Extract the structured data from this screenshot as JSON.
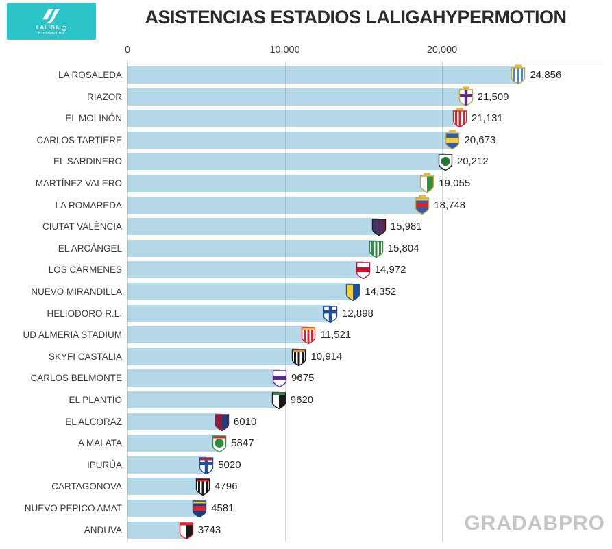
{
  "header": {
    "logo": {
      "brand": "LALIGA",
      "sub": "HYPERMOTION",
      "bg_color": "#2bc4c8"
    },
    "title": "ASISTENCIAS ESTADIOS LALIGAHYPERMOTION"
  },
  "watermark": "GRADABPRO",
  "chart_data": {
    "type": "bar",
    "orientation": "horizontal",
    "title": "ASISTENCIAS ESTADIOS LALIGAHYPERMOTION",
    "xlabel": "",
    "ylabel": "",
    "grid": "vertical-lines-at-ticks",
    "bar_color": "#b5d8e9",
    "x_axis": {
      "ticks": [
        0,
        10000,
        20000
      ],
      "tick_labels": [
        "0",
        "10,000",
        "20,000"
      ],
      "max": 30000
    },
    "categories": [
      "LA ROSALEDA",
      "RIAZOR",
      "EL MOLINÓN",
      "CARLOS TARTIERE",
      "EL SARDINERO",
      "MARTÍNEZ VALERO",
      "LA ROMAREDA",
      "CIUTAT VALÈNCIA",
      "EL ARCÁNGEL",
      "LOS CÁRMENES",
      "NUEVO MIRANDILLA",
      "HELIODORO R.L.",
      "UD ALMERIA STADIUM",
      "SKYFI CASTALIA",
      "CARLOS BELMONTE",
      "EL PLANTÍO",
      "EL ALCORAZ",
      "A MALATA",
      "IPURÚA",
      "CARTAGONOVA",
      "NUEVO PEPICO AMAT",
      "ANDUVA"
    ],
    "values": [
      24856,
      21509,
      21131,
      20673,
      20212,
      19055,
      18748,
      15981,
      15804,
      14972,
      14352,
      12898,
      11521,
      10914,
      9675,
      9620,
      6010,
      5847,
      5020,
      4796,
      4581,
      3743
    ],
    "value_labels": [
      "24,856",
      "21,509",
      "21,131",
      "20,673",
      "20,212",
      "19,055",
      "18,748",
      "15,981",
      "15,804",
      "14,972",
      "14,352",
      "12,898",
      "11,521",
      "10,914",
      "9675",
      "9620",
      "6010",
      "5847",
      "5020",
      "4796",
      "4581",
      "3743"
    ],
    "clubs": [
      {
        "name": "malaga-cf-crest",
        "style": "stripes",
        "c1": "#ffffff",
        "c2": "#4a86d2",
        "border": "#caa53d",
        "crown": true
      },
      {
        "name": "deportivo-coruna-crest",
        "style": "cross",
        "c1": "#ffffff",
        "c2": "#5b2a84",
        "border": "#caa53d",
        "crown": true
      },
      {
        "name": "sporting-gijon-crest",
        "style": "stripes",
        "c1": "#ffffff",
        "c2": "#d9242f",
        "border": "#d9242f",
        "crown": true
      },
      {
        "name": "real-oviedo-crest",
        "style": "band",
        "c1": "#2b5cad",
        "c2": "#f0c93c",
        "border": "#caa53d",
        "crown": true
      },
      {
        "name": "racing-santander-crest",
        "style": "circle",
        "c1": "#ffffff",
        "c2": "#1e7a34",
        "border": "#1a1a1a",
        "crown": false
      },
      {
        "name": "elche-cf-crest",
        "style": "halves",
        "c1": "#ffffff",
        "c2": "#2f8f3f",
        "border": "#caa53d",
        "crown": true
      },
      {
        "name": "real-zaragoza-crest",
        "style": "band",
        "c1": "#2b5cad",
        "c2": "#d9242f",
        "accent": "#f0c93c",
        "border": "#caa53d",
        "crown": true
      },
      {
        "name": "levante-ud-crest",
        "style": "stripes",
        "c1": "#8c1d3f",
        "c2": "#1f3d7a",
        "border": "#1a1a1a",
        "crown": false
      },
      {
        "name": "cordoba-cf-crest",
        "style": "stripes",
        "c1": "#ffffff",
        "c2": "#2f8f3f",
        "border": "#2f8f3f",
        "crown": false
      },
      {
        "name": "granada-cf-crest",
        "style": "band",
        "c1": "#ffffff",
        "c2": "#c8102e",
        "border": "#c8102e",
        "crown": false
      },
      {
        "name": "cadiz-cf-crest",
        "style": "halves",
        "c1": "#f5d130",
        "c2": "#1f4fa0",
        "border": "#1f4fa0",
        "crown": false
      },
      {
        "name": "cd-tenerife-crest",
        "style": "cross",
        "c1": "#ffffff",
        "c2": "#1f4fa0",
        "border": "#1f4fa0",
        "crown": false
      },
      {
        "name": "ud-almeria-crest",
        "style": "stripes",
        "c1": "#ffffff",
        "c2": "#d9242f",
        "accent": "#f0c93c",
        "border": "#d9242f",
        "crown": false
      },
      {
        "name": "cd-castellon-crest",
        "style": "stripes",
        "c1": "#ffffff",
        "c2": "#1a1a1a",
        "accent": "#f28c28",
        "border": "#1a1a1a",
        "crown": false
      },
      {
        "name": "albacete-crest",
        "style": "band",
        "c1": "#ffffff",
        "c2": "#5b2a84",
        "border": "#5b2a84",
        "crown": false
      },
      {
        "name": "burgos-cf-crest",
        "style": "halves",
        "c1": "#ffffff",
        "c2": "#1a1a1a",
        "accent": "#2f8f3f",
        "border": "#1a1a1a",
        "crown": false
      },
      {
        "name": "sd-huesca-crest",
        "style": "halves",
        "c1": "#8c1d3f",
        "c2": "#1f3d7a",
        "border": "#8c1d3f",
        "crown": false
      },
      {
        "name": "racing-ferrol-crest",
        "style": "circle",
        "c1": "#ffffff",
        "c2": "#2f8f3f",
        "accent": "#d9242f",
        "border": "#2f8f3f",
        "crown": false
      },
      {
        "name": "sd-eibar-crest",
        "style": "cross",
        "c1": "#ffffff",
        "c2": "#1f4fa0",
        "accent": "#d9242f",
        "border": "#1f4fa0",
        "crown": false
      },
      {
        "name": "fc-cartagena-crest",
        "style": "stripes",
        "c1": "#ffffff",
        "c2": "#1a1a1a",
        "accent": "#d9242f",
        "border": "#1a1a1a",
        "crown": false
      },
      {
        "name": "cd-eldense-crest",
        "style": "band",
        "c1": "#1f3d7a",
        "c2": "#d9242f",
        "accent": "#f0c93c",
        "border": "#1f3d7a",
        "crown": false
      },
      {
        "name": "cd-mirandes-crest",
        "style": "halves",
        "c1": "#ffffff",
        "c2": "#1a1a1a",
        "accent": "#d9242f",
        "border": "#d9242f",
        "crown": false
      }
    ]
  }
}
